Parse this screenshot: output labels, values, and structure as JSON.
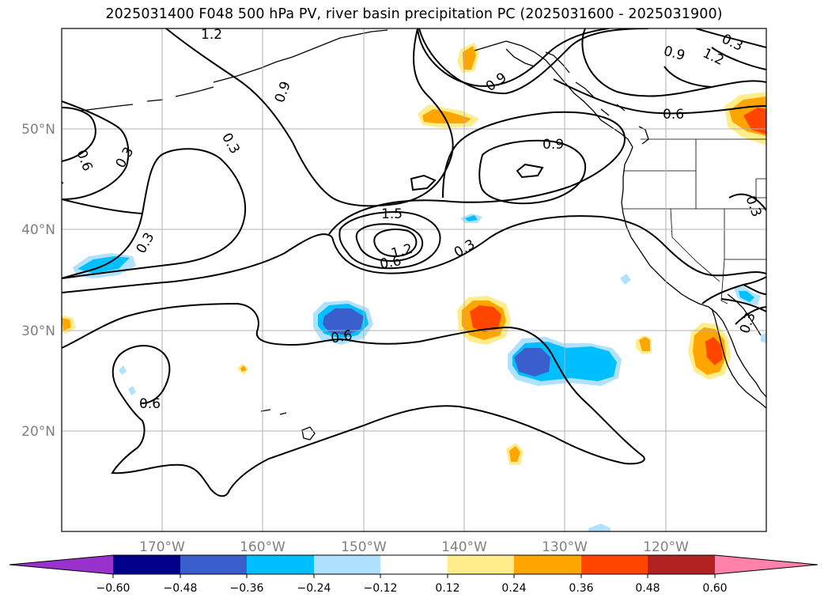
{
  "title": "2025031400 F048 500 hPa PV, river basin precipitation PC (2025031600 - 2025031900)",
  "map": {
    "lon_ticks": [
      "170°W",
      "160°W",
      "150°W",
      "140°W",
      "130°W",
      "120°W"
    ],
    "lat_ticks": [
      "50°N",
      "40°N",
      "30°N",
      "20°N"
    ],
    "contour_labels": [
      "1.2",
      "0.9",
      "0.3",
      "0.6",
      "0.3",
      "0.3",
      "0.9",
      "0.9",
      "1.5",
      "1.2",
      "0.6",
      "0.3",
      "0.6",
      "0.6",
      "0.9",
      "1.2",
      "0.3",
      "0.6",
      "0.3"
    ],
    "colors": {
      "contour": "#000000",
      "grid": "#b0b0b0",
      "tick_label": "#808080"
    }
  },
  "colorbar": {
    "tick_labels": [
      "−0.60",
      "−0.48",
      "−0.36",
      "−0.24",
      "−0.12",
      "0.12",
      "0.24",
      "0.36",
      "0.48",
      "0.60"
    ],
    "colors": [
      "#9932cc",
      "#00008b",
      "#3a5fcd",
      "#00bfff",
      "#b0e2ff",
      "#ffffff",
      "#ffec8b",
      "#ffa500",
      "#ff4500",
      "#b22222",
      "#ff82ab"
    ]
  }
}
